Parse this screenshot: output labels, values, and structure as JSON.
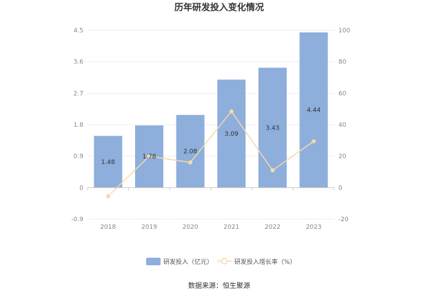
{
  "chart_data": {
    "type": "bar",
    "title": "历年研发投入变化情况",
    "categories": [
      "2018",
      "2019",
      "2020",
      "2021",
      "2022",
      "2023"
    ],
    "series": [
      {
        "name": "研发投入（亿元）",
        "type": "bar",
        "axis": "left",
        "values": [
          1.48,
          1.78,
          2.08,
          3.09,
          3.43,
          4.44
        ],
        "labels": [
          "1.48",
          "1.78",
          "2.08",
          "3.09",
          "3.43",
          "4.44"
        ],
        "color": "#8eaedc"
      },
      {
        "name": "研发投入增长率（%）",
        "type": "line",
        "axis": "right",
        "values": [
          -5.5,
          20.0,
          16.0,
          48.5,
          11.0,
          29.5
        ],
        "color": "#f7d9a6"
      }
    ],
    "y_left": {
      "ticks": [
        "4.5",
        "3.6",
        "2.7",
        "1.8",
        "0.9",
        "0",
        "-0.9"
      ],
      "range": [
        -0.9,
        4.5
      ]
    },
    "y_right": {
      "ticks": [
        "100",
        "80",
        "60",
        "40",
        "20",
        "0",
        "-20"
      ],
      "range": [
        -20,
        100
      ]
    },
    "grid": true,
    "legend_position": "bottom"
  },
  "source_text": "数据来源：恒生聚源"
}
